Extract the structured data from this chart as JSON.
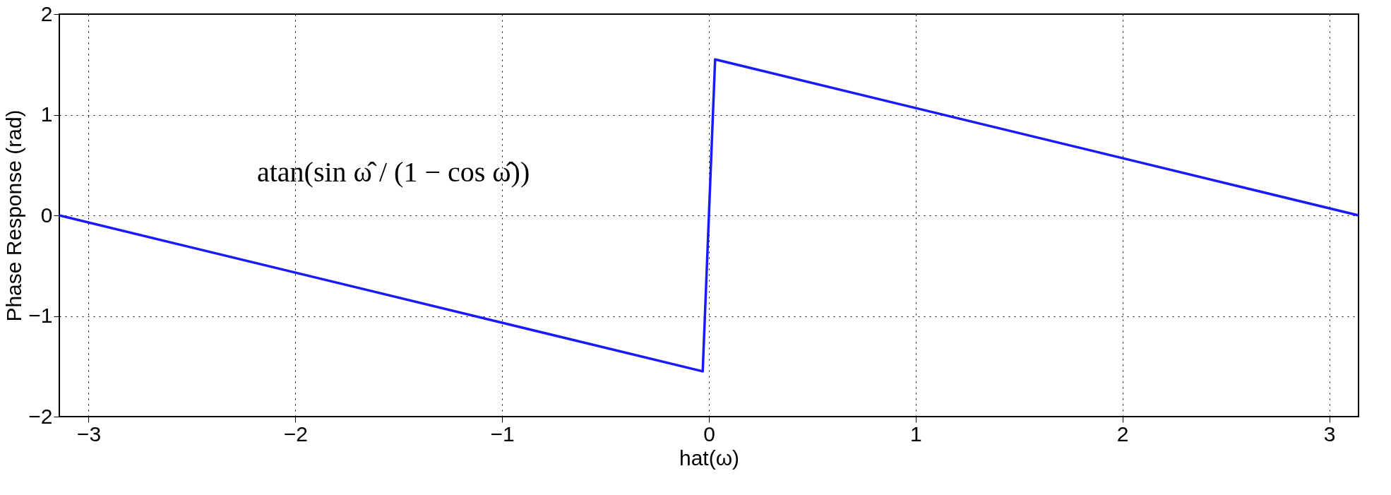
{
  "chart_data": {
    "type": "line",
    "xlabel": "hat(ω)",
    "ylabel": "Phase Response (rad)",
    "x": [
      -3.1416,
      -0.03,
      0.03,
      3.1416
    ],
    "series": [
      {
        "color": "#1a1aff",
        "values": [
          0,
          -1.55,
          1.55,
          0
        ]
      }
    ],
    "xlim": [
      -3.1416,
      3.1416
    ],
    "ylim": [
      -2,
      2
    ],
    "xticks": [
      -3,
      -2,
      -1,
      0,
      1,
      2,
      3
    ],
    "yticks": [
      -2,
      -1,
      0,
      1,
      2
    ],
    "grid": true,
    "line_style": "solid",
    "marker": "none",
    "annotations": [
      "atan(sin ω̂ / (1 − cos ω̂))"
    ]
  }
}
